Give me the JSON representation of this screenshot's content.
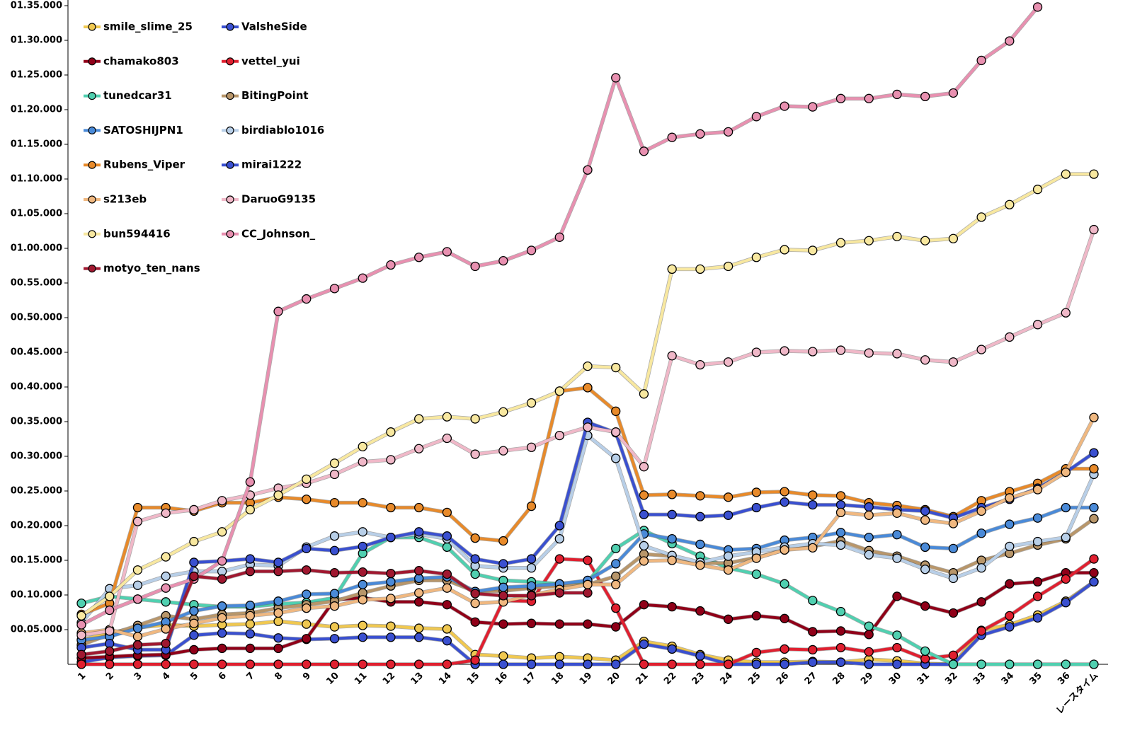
{
  "chart_data": {
    "type": "line",
    "categories": [
      "1",
      "2",
      "3",
      "4",
      "5",
      "6",
      "7",
      "8",
      "9",
      "10",
      "11",
      "12",
      "13",
      "14",
      "15",
      "16",
      "17",
      "18",
      "19",
      "20",
      "21",
      "22",
      "23",
      "24",
      "25",
      "26",
      "27",
      "28",
      "29",
      "30",
      "31",
      "32",
      "33",
      "34",
      "35",
      "36",
      "レースタイム"
    ],
    "ylim": [
      0,
      95
    ],
    "yticks": [
      {
        "value": 5,
        "label": "00.05.000"
      },
      {
        "value": 10,
        "label": "00.10.000"
      },
      {
        "value": 15,
        "label": "00.15.000"
      },
      {
        "value": 20,
        "label": "00.20.000"
      },
      {
        "value": 25,
        "label": "00.25.000"
      },
      {
        "value": 30,
        "label": "00.30.000"
      },
      {
        "value": 35,
        "label": "00.35.000"
      },
      {
        "value": 40,
        "label": "00.40.000"
      },
      {
        "value": 45,
        "label": "00.45.000"
      },
      {
        "value": 50,
        "label": "00.50.000"
      },
      {
        "value": 55,
        "label": "00.55.000"
      },
      {
        "value": 60,
        "label": "01.00.000"
      },
      {
        "value": 65,
        "label": "01.05.000"
      },
      {
        "value": 70,
        "label": "01.10.000"
      },
      {
        "value": 75,
        "label": "01.15.000"
      },
      {
        "value": 80,
        "label": "01.20.000"
      },
      {
        "value": 85,
        "label": "01.25.000"
      },
      {
        "value": 90,
        "label": "01.30.000"
      },
      {
        "value": 95,
        "label": "01.35.000"
      }
    ],
    "grid": false,
    "legend": "upper left",
    "series": [
      {
        "name": "smile_slime_25",
        "color": "#f0c850",
        "values": [
          3.5,
          4.5,
          5.3,
          5.7,
          5.5,
          5.7,
          5.8,
          6.2,
          5.8,
          5.4,
          5.6,
          5.5,
          5.2,
          5.1,
          1.4,
          1.2,
          0.9,
          1.1,
          0.9,
          0.6,
          3.3,
          2.6,
          1.4,
          0.6,
          0.3,
          0.3,
          0.4,
          0.3,
          0.7,
          0.5,
          0.1,
          0,
          4.9,
          5.7,
          7.1,
          9.1,
          11.9
        ]
      },
      {
        "name": "ValsheSide",
        "color": "#3a50d0",
        "values": [
          0.3,
          1.0,
          1.2,
          1.3,
          4.2,
          4.5,
          4.4,
          3.8,
          3.6,
          3.7,
          3.9,
          3.9,
          3.9,
          3.4,
          0,
          0,
          0,
          0,
          0,
          0,
          2.9,
          2.2,
          1.2,
          0,
          0,
          0,
          0.3,
          0.3,
          0,
          0,
          0,
          0,
          4.2,
          5.4,
          6.7,
          8.9,
          11.9
        ]
      },
      {
        "name": "chamako803",
        "color": "#900018",
        "values": [
          0.9,
          1.1,
          1.3,
          1.4,
          2.1,
          2.3,
          2.3,
          2.3,
          3.7,
          9.3,
          9.6,
          9.0,
          9.0,
          8.6,
          6.1,
          5.8,
          5.9,
          5.8,
          5.8,
          5.4,
          8.6,
          8.3,
          7.7,
          6.5,
          7.0,
          6.6,
          4.7,
          4.8,
          4.3,
          9.8,
          8.4,
          7.4,
          9.0,
          11.6,
          11.9,
          13.2,
          13.2
        ]
      },
      {
        "name": "vettel_yui",
        "color": "#e02030",
        "values": [
          0,
          0,
          0,
          0,
          0,
          0,
          0,
          0,
          0,
          0,
          0,
          0,
          0,
          0,
          0.6,
          9.2,
          9.1,
          15.2,
          15.0,
          8.1,
          0,
          0,
          0,
          0,
          1.7,
          2.2,
          2.1,
          2.4,
          1.8,
          2.4,
          0.8,
          1.3,
          4.8,
          7.0,
          9.8,
          12.3,
          15.2
        ]
      },
      {
        "name": "tunedcar31",
        "color": "#50d0b0",
        "values": [
          8.8,
          9.8,
          9.4,
          9.0,
          8.6,
          8.3,
          8.3,
          8.7,
          8.9,
          9.6,
          16.0,
          18.3,
          18.3,
          16.9,
          13.0,
          12.1,
          11.9,
          11.6,
          11.9,
          16.7,
          19.3,
          17.4,
          15.6,
          13.9,
          13.0,
          11.6,
          9.2,
          7.6,
          5.5,
          4.2,
          1.9,
          0,
          0,
          0,
          0,
          0,
          0
        ]
      },
      {
        "name": "BitingPoint",
        "color": "#b8966a",
        "values": [
          2.8,
          4.3,
          5.6,
          7.0,
          6.5,
          7.2,
          7.4,
          8.1,
          8.6,
          9.1,
          10.3,
          11.3,
          12.1,
          12.1,
          10.5,
          10.6,
          11.0,
          11.3,
          11.5,
          12.7,
          15.9,
          15.6,
          14.6,
          14.6,
          15.4,
          16.5,
          17.0,
          17.8,
          16.4,
          15.6,
          14.3,
          13.2,
          15.0,
          16.0,
          17.2,
          18.1,
          21.0
        ]
      },
      {
        "name": "SATOSHIJPN1",
        "color": "#4a8ad8",
        "values": [
          3.5,
          4.0,
          5.2,
          6.1,
          7.7,
          8.4,
          8.5,
          9.1,
          10.1,
          10.2,
          11.5,
          11.9,
          12.4,
          12.6,
          10.5,
          11.1,
          11.3,
          11.6,
          12.1,
          14.5,
          18.8,
          18.1,
          17.3,
          16.5,
          16.7,
          17.9,
          18.3,
          19.0,
          18.3,
          18.7,
          16.9,
          16.7,
          18.9,
          20.2,
          21.1,
          22.6,
          22.6
        ]
      },
      {
        "name": "birdiablo1016",
        "color": "#b8cfe8",
        "values": [
          6.0,
          10.9,
          11.4,
          12.7,
          13.4,
          13.4,
          14.4,
          14.2,
          16.9,
          18.5,
          19.1,
          18.3,
          18.8,
          18.1,
          14.2,
          13.9,
          13.9,
          18.1,
          33.0,
          29.7,
          17.1,
          15.7,
          14.7,
          15.6,
          16.2,
          16.9,
          17.4,
          17.2,
          15.8,
          15.3,
          13.7,
          12.4,
          13.9,
          17.0,
          17.7,
          18.3,
          27.4
        ]
      },
      {
        "name": "Rubens_Viper",
        "color": "#e88a2a",
        "values": [
          7.2,
          8.8,
          22.6,
          22.6,
          22.1,
          23.3,
          23.3,
          24.1,
          23.8,
          23.3,
          23.3,
          22.6,
          22.6,
          21.9,
          18.2,
          17.8,
          22.8,
          39.4,
          39.9,
          36.5,
          24.4,
          24.5,
          24.3,
          24.1,
          24.8,
          24.9,
          24.4,
          24.3,
          23.3,
          22.9,
          22.3,
          21.3,
          23.6,
          24.9,
          26.1,
          28.2,
          28.2
        ]
      },
      {
        "name": "mirai1222",
        "color": "#3a50d0",
        "values": [
          2.4,
          3.0,
          2.1,
          2.1,
          14.7,
          14.9,
          15.2,
          14.7,
          16.7,
          16.4,
          17.0,
          18.3,
          19.1,
          18.5,
          15.2,
          14.5,
          15.2,
          20.0,
          34.9,
          33.4,
          21.6,
          21.6,
          21.3,
          21.5,
          22.6,
          23.4,
          23.0,
          23.0,
          22.7,
          22.3,
          22.1,
          21.1,
          22.6,
          23.8,
          25.4,
          27.7,
          30.5
        ]
      },
      {
        "name": "s213eb",
        "color": "#f0b880",
        "values": [
          4.5,
          5.0,
          4.0,
          5.1,
          5.9,
          6.7,
          7.0,
          7.4,
          8.1,
          8.4,
          9.3,
          9.5,
          10.3,
          11.0,
          8.8,
          9.0,
          10.0,
          10.8,
          11.5,
          11.5,
          14.9,
          15.0,
          14.3,
          13.6,
          15.3,
          16.5,
          16.8,
          21.9,
          21.5,
          21.8,
          20.8,
          20.3,
          22.1,
          24.0,
          25.2,
          27.7,
          35.6
        ]
      },
      {
        "name": "DaruoG9135",
        "color": "#f0b8c8",
        "values": [
          4.2,
          4.8,
          20.6,
          21.8,
          22.3,
          23.6,
          24.4,
          25.4,
          26.1,
          27.4,
          29.2,
          29.5,
          31.1,
          32.6,
          30.3,
          30.8,
          31.3,
          33.0,
          34.2,
          33.5,
          28.5,
          44.5,
          43.2,
          43.6,
          45.0,
          45.2,
          45.1,
          45.3,
          44.9,
          44.8,
          43.9,
          43.6,
          45.4,
          47.2,
          49.0,
          50.7,
          62.7
        ]
      },
      {
        "name": "bun594416",
        "color": "#f8e8a0",
        "values": [
          7.0,
          9.8,
          13.6,
          15.5,
          17.7,
          19.1,
          22.3,
          24.4,
          26.7,
          29.0,
          31.4,
          33.5,
          35.4,
          35.7,
          35.4,
          36.4,
          37.7,
          39.4,
          43.0,
          42.8,
          39.0,
          57.0,
          57.0,
          57.4,
          58.7,
          59.8,
          59.7,
          60.8,
          61.1,
          61.7,
          61.1,
          61.4,
          64.5,
          66.3,
          68.5,
          70.7,
          70.7
        ]
      },
      {
        "name": "CC_Johnson_",
        "color": "#e890b0",
        "values": [
          5.7,
          7.8,
          9.4,
          11.0,
          12.3,
          14.9,
          26.3,
          50.9,
          52.7,
          54.2,
          55.7,
          57.6,
          58.7,
          59.5,
          57.4,
          58.2,
          59.7,
          61.6,
          71.3,
          84.6,
          74.0,
          76.0,
          76.5,
          76.8,
          79.0,
          80.5,
          80.4,
          81.6,
          81.6,
          82.2,
          81.9,
          82.4,
          87.1,
          89.9,
          94.8,
          null,
          null
        ]
      },
      {
        "name": "motyo_ten_nans",
        "color": "#a01830",
        "values": [
          1.4,
          1.9,
          2.8,
          3.0,
          12.7,
          12.3,
          13.4,
          13.4,
          13.6,
          13.2,
          13.3,
          13.1,
          13.5,
          13.0,
          10.2,
          9.9,
          9.9,
          10.3,
          10.3,
          null,
          null,
          null,
          null,
          null,
          null,
          null,
          null,
          null,
          null,
          null,
          null,
          null,
          null,
          null,
          null,
          null,
          null
        ]
      }
    ]
  }
}
